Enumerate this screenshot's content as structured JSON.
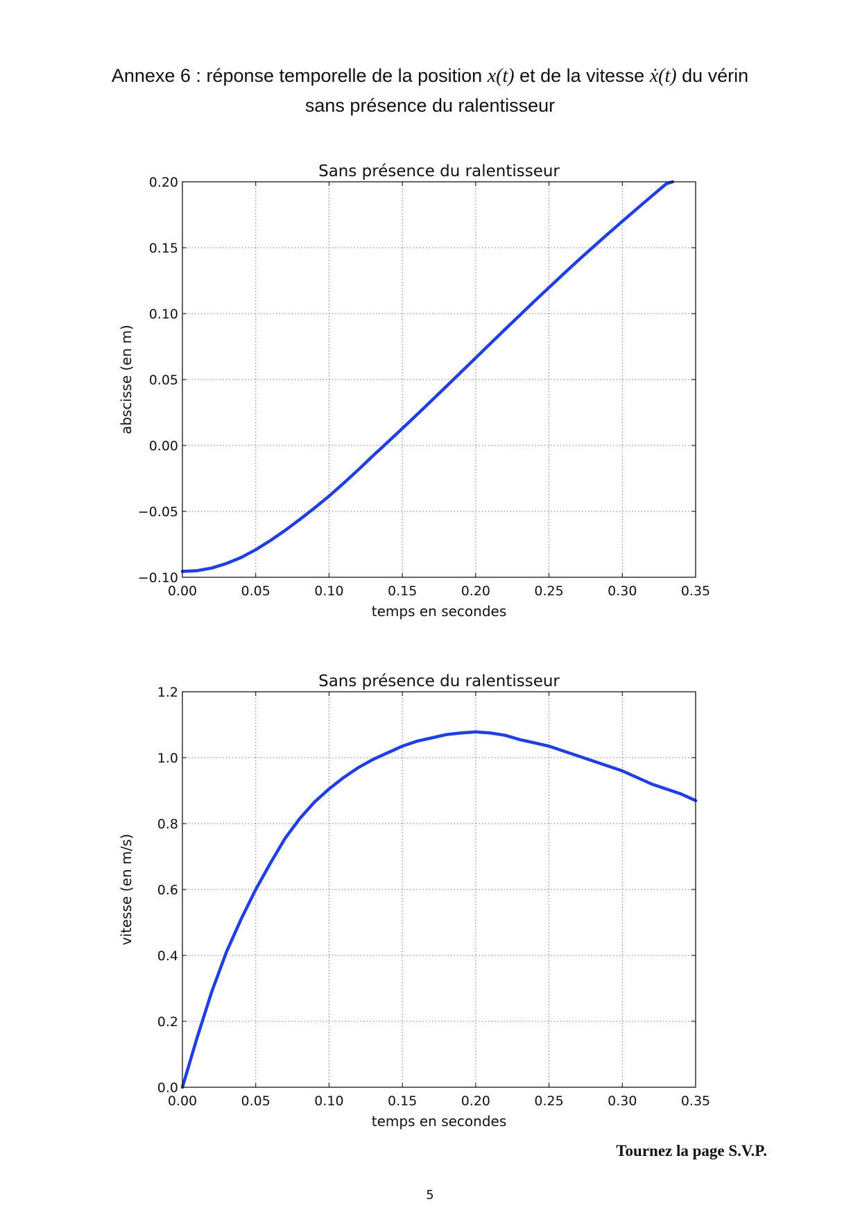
{
  "header": {
    "line1_prefix": "Annexe 6 : réponse temporelle de la position",
    "line1_x": "x(t)",
    "line1_mid": "et de la vitesse",
    "line1_xdot": "ẋ(t)",
    "line1_suffix": "du vérin",
    "line2": "sans présence du ralentisseur"
  },
  "chart_data": [
    {
      "type": "line",
      "title": "Sans présence du ralentisseur",
      "xlabel": "temps en secondes",
      "ylabel": "abscisse (en m)",
      "xlim": [
        0,
        0.35
      ],
      "ylim": [
        -0.1,
        0.2
      ],
      "xticks": [
        "0.00",
        "0.05",
        "0.10",
        "0.15",
        "0.20",
        "0.25",
        "0.30",
        "0.35"
      ],
      "yticks": [
        "−0.10",
        "−0.05",
        "0.00",
        "0.05",
        "0.10",
        "0.15",
        "0.20"
      ],
      "grid": true,
      "series": [
        {
          "color": "#1f3fe0",
          "x": [
            0,
            0.01,
            0.02,
            0.03,
            0.04,
            0.05,
            0.06,
            0.07,
            0.08,
            0.09,
            0.1,
            0.11,
            0.12,
            0.13,
            0.14,
            0.15,
            0.16,
            0.17,
            0.18,
            0.19,
            0.2,
            0.21,
            0.22,
            0.23,
            0.24,
            0.25,
            0.26,
            0.27,
            0.28,
            0.29,
            0.3,
            0.31,
            0.32,
            0.33,
            0.34
          ],
          "y": [
            -0.0955,
            -0.095,
            -0.093,
            -0.0896,
            -0.085,
            -0.0791,
            -0.0721,
            -0.0645,
            -0.0562,
            -0.0475,
            -0.0385,
            -0.0286,
            -0.0184,
            -0.0078,
            0.0025,
            0.0129,
            0.0234,
            0.0341,
            0.0448,
            0.0556,
            0.0664,
            0.0772,
            0.088,
            0.0987,
            0.1093,
            0.1198,
            0.1302,
            0.1405,
            0.1504,
            0.1603,
            0.17,
            0.1796,
            0.1891,
            0.1985,
            0.202
          ]
        }
      ]
    },
    {
      "type": "line",
      "title": "Sans présence du ralentisseur",
      "xlabel": "temps en secondes",
      "ylabel": "vitesse (en m/s)",
      "xlim": [
        0,
        0.35
      ],
      "ylim": [
        0,
        1.2
      ],
      "xticks": [
        "0.00",
        "0.05",
        "0.10",
        "0.15",
        "0.20",
        "0.25",
        "0.30",
        "0.35"
      ],
      "yticks": [
        "0.0",
        "0.2",
        "0.4",
        "0.6",
        "0.8",
        "1.0",
        "1.2"
      ],
      "grid": true,
      "series": [
        {
          "color": "#1f3fe0",
          "x": [
            0,
            0.01,
            0.02,
            0.03,
            0.04,
            0.05,
            0.06,
            0.07,
            0.08,
            0.09,
            0.1,
            0.11,
            0.12,
            0.13,
            0.14,
            0.15,
            0.16,
            0.17,
            0.18,
            0.19,
            0.2,
            0.21,
            0.22,
            0.23,
            0.24,
            0.25,
            0.26,
            0.27,
            0.28,
            0.29,
            0.3,
            0.31,
            0.32,
            0.33,
            0.34,
            0.35
          ],
          "y": [
            0.0,
            0.15,
            0.29,
            0.41,
            0.51,
            0.6,
            0.68,
            0.755,
            0.815,
            0.865,
            0.905,
            0.94,
            0.97,
            0.995,
            1.015,
            1.035,
            1.05,
            1.06,
            1.07,
            1.075,
            1.078,
            1.075,
            1.068,
            1.055,
            1.045,
            1.035,
            1.02,
            1.005,
            0.99,
            0.975,
            0.96,
            0.94,
            0.92,
            0.905,
            0.89,
            0.87
          ]
        }
      ]
    }
  ],
  "footer": {
    "note": "Tournez la page S.V.P.",
    "page_number": "5"
  }
}
